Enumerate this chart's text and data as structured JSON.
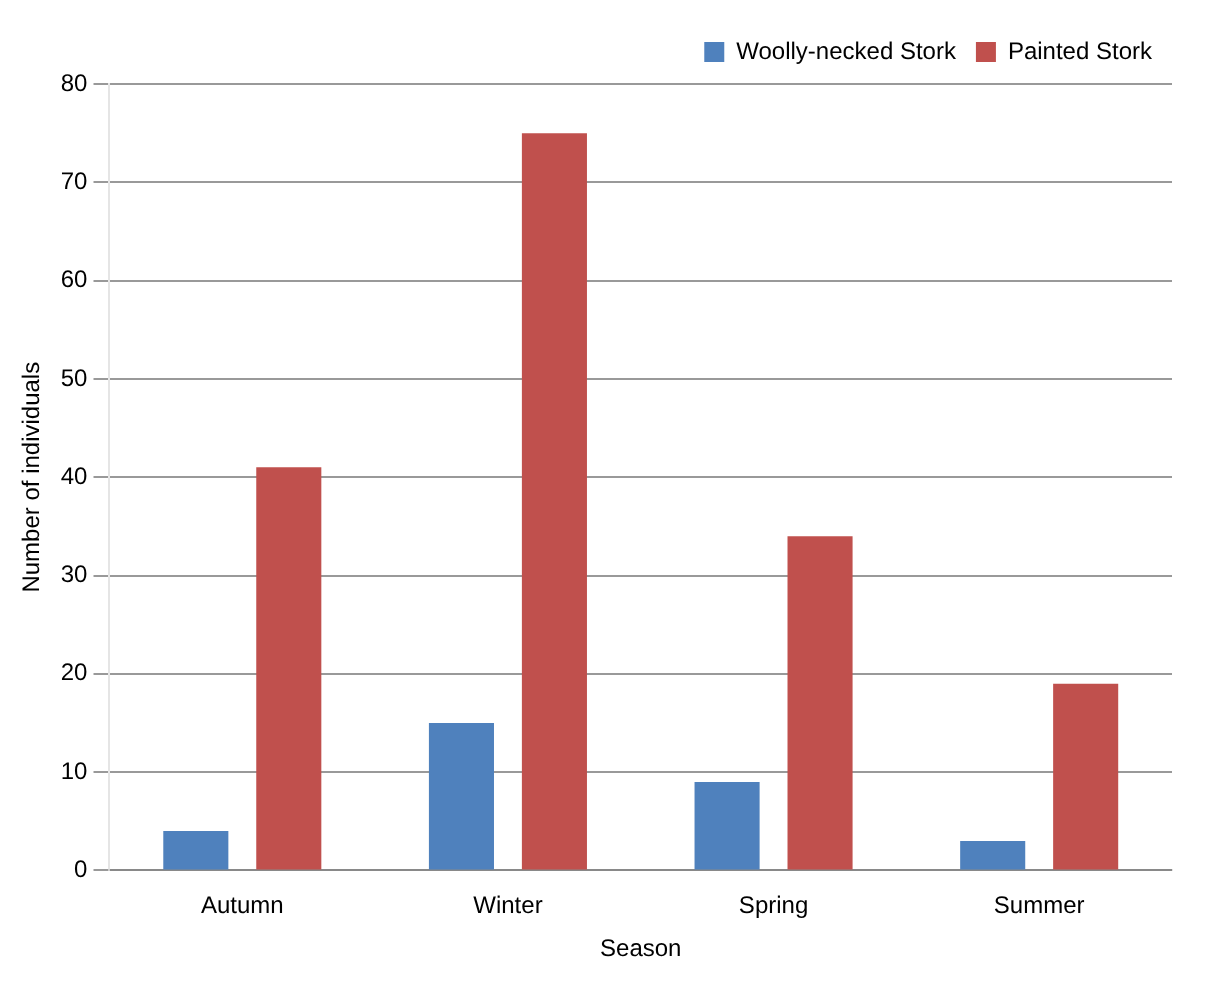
{
  "chart_data": {
    "type": "bar",
    "xlabel": "Season",
    "ylabel": "Number of individuals",
    "categories": [
      "Autumn",
      "Winter",
      "Spring",
      "Summer"
    ],
    "series": [
      {
        "name": "Woolly-necked Stork",
        "color": "#4f81bd",
        "values": [
          4,
          15,
          9,
          3
        ]
      },
      {
        "name": "Painted Stork",
        "color": "#c0504d",
        "values": [
          41,
          75,
          34,
          19
        ]
      }
    ],
    "ylim": [
      0,
      80
    ],
    "yticks": [
      0,
      10,
      20,
      30,
      40,
      50,
      60,
      70,
      80
    ],
    "grid": "y",
    "legend": "top right"
  }
}
